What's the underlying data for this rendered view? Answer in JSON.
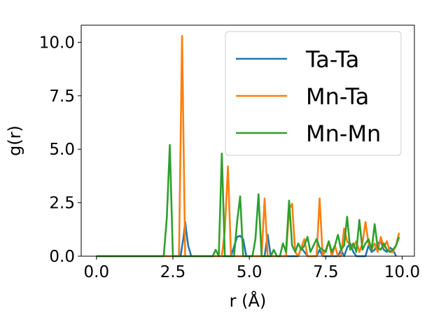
{
  "chart_data": {
    "type": "line",
    "title": "",
    "xlabel": "r (Å)",
    "ylabel": "g(r)",
    "xlim": [
      -0.5,
      10.4
    ],
    "ylim": [
      0,
      10.8
    ],
    "xticks": [
      0.0,
      2.5,
      5.0,
      7.5,
      10.0
    ],
    "xtick_labels": [
      "0.0",
      "2.5",
      "5.0",
      "7.5",
      "10.0"
    ],
    "yticks": [
      0.0,
      2.5,
      5.0,
      7.5,
      10.0
    ],
    "ytick_labels": [
      "0.0",
      "2.5",
      "5.0",
      "7.5",
      "10.0"
    ],
    "grid": false,
    "legend_position": "top-right",
    "series": [
      {
        "name": "Ta-Ta",
        "color": "#1f77b4",
        "points": [
          [
            0,
            0
          ],
          [
            2.75,
            0
          ],
          [
            2.85,
            0.9
          ],
          [
            2.9,
            1.6
          ],
          [
            3.0,
            0.5
          ],
          [
            3.1,
            0
          ],
          [
            4.4,
            0
          ],
          [
            4.6,
            0.9
          ],
          [
            4.7,
            0.95
          ],
          [
            4.8,
            0.8
          ],
          [
            4.9,
            0
          ],
          [
            5.5,
            0
          ],
          [
            5.6,
            1.0
          ],
          [
            5.7,
            0
          ],
          [
            6.6,
            0
          ],
          [
            6.7,
            0.4
          ],
          [
            6.8,
            0.2
          ],
          [
            6.9,
            0
          ],
          [
            7.2,
            0
          ],
          [
            7.3,
            0.3
          ],
          [
            7.4,
            0
          ],
          [
            7.9,
            0
          ],
          [
            8.0,
            0.3
          ],
          [
            8.1,
            0
          ],
          [
            8.2,
            0.4
          ],
          [
            8.3,
            0.6
          ],
          [
            8.4,
            0.2
          ],
          [
            8.5,
            0
          ],
          [
            8.8,
            0
          ],
          [
            8.9,
            0.5
          ],
          [
            9.0,
            0.2
          ],
          [
            9.1,
            0.3
          ],
          [
            9.2,
            0.6
          ],
          [
            9.3,
            0.7
          ],
          [
            9.4,
            0.3
          ],
          [
            9.5,
            0.2
          ],
          [
            9.6,
            0.4
          ],
          [
            9.7,
            0.3
          ],
          [
            9.8,
            0
          ]
        ]
      },
      {
        "name": "Mn-Ta",
        "color": "#ff7f0e",
        "points": [
          [
            0,
            0
          ],
          [
            2.7,
            0
          ],
          [
            2.8,
            10.3
          ],
          [
            2.9,
            0
          ],
          [
            4.1,
            0
          ],
          [
            4.2,
            1.2
          ],
          [
            4.3,
            4.2
          ],
          [
            4.4,
            0
          ],
          [
            5.4,
            0
          ],
          [
            5.5,
            2.7
          ],
          [
            5.6,
            0
          ],
          [
            6.2,
            0
          ],
          [
            6.3,
            2.2
          ],
          [
            6.4,
            2.45
          ],
          [
            6.5,
            0.2
          ],
          [
            6.6,
            0
          ],
          [
            6.8,
            0.8
          ],
          [
            6.9,
            0
          ],
          [
            7.2,
            0
          ],
          [
            7.3,
            2.7
          ],
          [
            7.4,
            0
          ],
          [
            7.5,
            0.3
          ],
          [
            7.6,
            0.7
          ],
          [
            7.7,
            0
          ],
          [
            7.8,
            0.5
          ],
          [
            7.9,
            0
          ],
          [
            8.0,
            0
          ],
          [
            8.1,
            1.3
          ],
          [
            8.2,
            0.7
          ],
          [
            8.3,
            0.5
          ],
          [
            8.4,
            0.4
          ],
          [
            8.5,
            0.7
          ],
          [
            8.6,
            0.2
          ],
          [
            8.7,
            0.6
          ],
          [
            8.8,
            1.6
          ],
          [
            8.9,
            0.6
          ],
          [
            9.0,
            0.3
          ],
          [
            9.1,
            0.6
          ],
          [
            9.2,
            0.2
          ],
          [
            9.3,
            0.9
          ],
          [
            9.4,
            0.4
          ],
          [
            9.5,
            0.7
          ],
          [
            9.6,
            0.2
          ],
          [
            9.7,
            0.2
          ],
          [
            9.8,
            0.5
          ],
          [
            9.9,
            1.1
          ]
        ]
      },
      {
        "name": "Mn-Mn",
        "color": "#2ca02c",
        "points": [
          [
            0,
            0
          ],
          [
            2.2,
            0
          ],
          [
            2.3,
            1.8
          ],
          [
            2.4,
            5.2
          ],
          [
            2.5,
            0
          ],
          [
            3.8,
            0
          ],
          [
            3.9,
            0.3
          ],
          [
            4.0,
            0
          ],
          [
            4.1,
            4.8
          ],
          [
            4.2,
            0
          ],
          [
            4.5,
            0
          ],
          [
            4.6,
            1.6
          ],
          [
            4.7,
            2.8
          ],
          [
            4.8,
            0
          ],
          [
            5.1,
            0
          ],
          [
            5.2,
            0.8
          ],
          [
            5.3,
            2.9
          ],
          [
            5.4,
            0
          ],
          [
            5.7,
            0
          ],
          [
            5.8,
            0.3
          ],
          [
            5.9,
            0
          ],
          [
            6.0,
            0
          ],
          [
            6.1,
            0.6
          ],
          [
            6.2,
            0.2
          ],
          [
            6.3,
            2.6
          ],
          [
            6.4,
            0.5
          ],
          [
            6.5,
            0.2
          ],
          [
            6.6,
            0.6
          ],
          [
            6.7,
            0.3
          ],
          [
            6.8,
            0.5
          ],
          [
            6.9,
            0.9
          ],
          [
            7.0,
            0.2
          ],
          [
            7.1,
            0.5
          ],
          [
            7.2,
            0.8
          ],
          [
            7.3,
            0.4
          ],
          [
            7.4,
            0.3
          ],
          [
            7.5,
            0.2
          ],
          [
            7.6,
            0.7
          ],
          [
            7.7,
            0.2
          ],
          [
            7.8,
            0.5
          ],
          [
            7.9,
            1.0
          ],
          [
            8.0,
            0.3
          ],
          [
            8.1,
            0.5
          ],
          [
            8.2,
            1.85
          ],
          [
            8.3,
            0.3
          ],
          [
            8.4,
            0.6
          ],
          [
            8.5,
            0.2
          ],
          [
            8.6,
            1.7
          ],
          [
            8.7,
            0.3
          ],
          [
            8.8,
            0.6
          ],
          [
            8.9,
            0.8
          ],
          [
            9.0,
            0.3
          ],
          [
            9.1,
            1.5
          ],
          [
            9.2,
            0.4
          ],
          [
            9.3,
            0.3
          ],
          [
            9.4,
            0.6
          ],
          [
            9.5,
            0.3
          ],
          [
            9.6,
            0.2
          ],
          [
            9.7,
            0.3
          ],
          [
            9.8,
            0.5
          ],
          [
            9.9,
            0.9
          ]
        ]
      }
    ]
  }
}
